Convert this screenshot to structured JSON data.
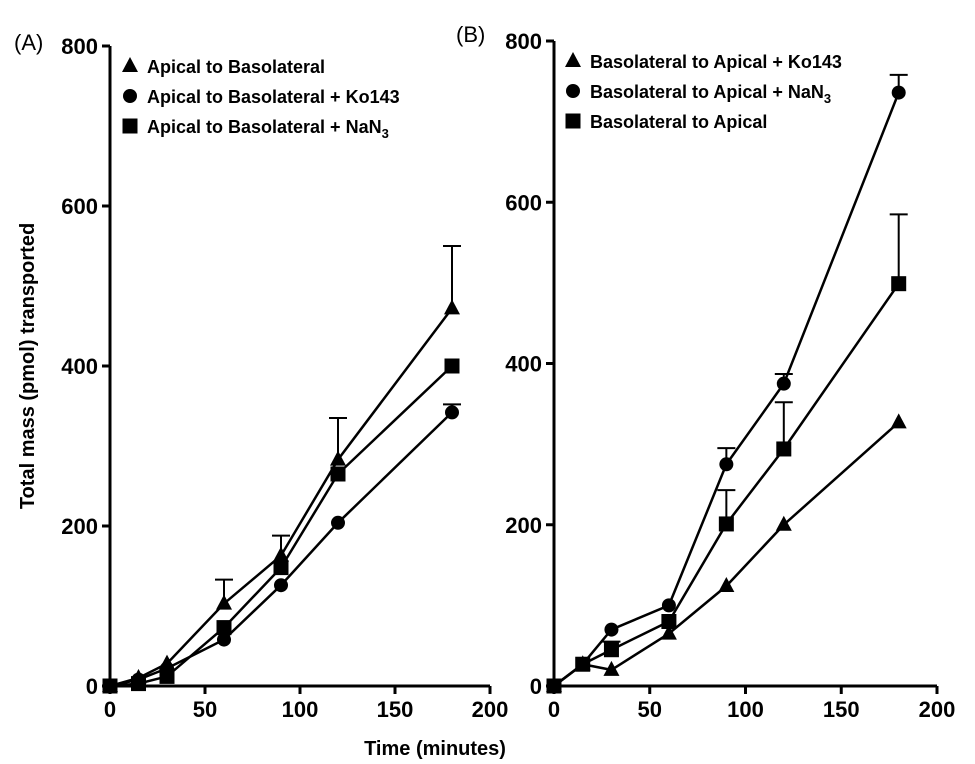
{
  "xlabel": "Time (minutes)",
  "ylabel": "Total mass (pmol) transported",
  "chart_data": [
    {
      "type": "line",
      "panel_label": "(A)",
      "xlim": [
        0,
        200
      ],
      "ylim": [
        0,
        800
      ],
      "xticks": [
        0,
        50,
        100,
        150,
        200
      ],
      "yticks": [
        0,
        200,
        400,
        600,
        800
      ],
      "legend_position": "top-left",
      "series": [
        {
          "name": "Apical to Basolateral",
          "label_main": "Apical to Basolateral",
          "label_sub": "",
          "marker": "triangle",
          "x": [
            0,
            15,
            30,
            60,
            90,
            120,
            180
          ],
          "y": [
            0,
            10,
            28,
            103,
            163,
            283,
            472
          ],
          "err": [
            0,
            0,
            0,
            30,
            25,
            52,
            78
          ]
        },
        {
          "name": "Apical to Basolateral + Ko143",
          "label_main": "Apical to Basolateral + Ko143",
          "label_sub": "",
          "marker": "circle",
          "x": [
            0,
            15,
            30,
            60,
            90,
            120,
            180
          ],
          "y": [
            0,
            8,
            22,
            58,
            126,
            204,
            342
          ],
          "err": [
            0,
            0,
            0,
            0,
            0,
            0,
            10
          ]
        },
        {
          "name": "Apical to Basolateral + NaN3",
          "label_main": "Apical to Basolateral + NaN",
          "label_sub": "3",
          "marker": "square",
          "x": [
            0,
            15,
            30,
            60,
            90,
            120,
            180
          ],
          "y": [
            0,
            3,
            12,
            73,
            148,
            265,
            400
          ],
          "err": [
            0,
            0,
            0,
            0,
            0,
            0,
            0
          ]
        }
      ]
    },
    {
      "type": "line",
      "panel_label": "(B)",
      "xlim": [
        0,
        200
      ],
      "ylim": [
        0,
        800
      ],
      "xticks": [
        0,
        50,
        100,
        150,
        200
      ],
      "yticks": [
        0,
        200,
        400,
        600,
        800
      ],
      "legend_position": "top-left",
      "series": [
        {
          "name": "Basolateral to Apical + Ko143",
          "label_main": "Basolateral to Apical + Ko143",
          "label_sub": "",
          "marker": "triangle",
          "x": [
            0,
            15,
            30,
            60,
            90,
            120,
            180
          ],
          "y": [
            0,
            27,
            20,
            65,
            124,
            200,
            327
          ],
          "err": [
            0,
            0,
            0,
            0,
            0,
            0,
            0
          ]
        },
        {
          "name": "Basolateral to Apical + NaN3",
          "label_main": "Basolateral to Apical + NaN",
          "label_sub": "3",
          "marker": "circle",
          "x": [
            0,
            15,
            30,
            60,
            90,
            120,
            180
          ],
          "y": [
            0,
            27,
            70,
            100,
            275,
            375,
            736
          ],
          "err": [
            0,
            0,
            0,
            0,
            20,
            12,
            22
          ]
        },
        {
          "name": "Basolateral to Apical",
          "label_main": "Basolateral to Apical",
          "label_sub": "",
          "marker": "square",
          "x": [
            0,
            15,
            30,
            60,
            90,
            120,
            180
          ],
          "y": [
            0,
            27,
            45,
            80,
            201,
            294,
            499
          ],
          "err": [
            0,
            0,
            10,
            0,
            42,
            58,
            86
          ]
        }
      ]
    }
  ]
}
